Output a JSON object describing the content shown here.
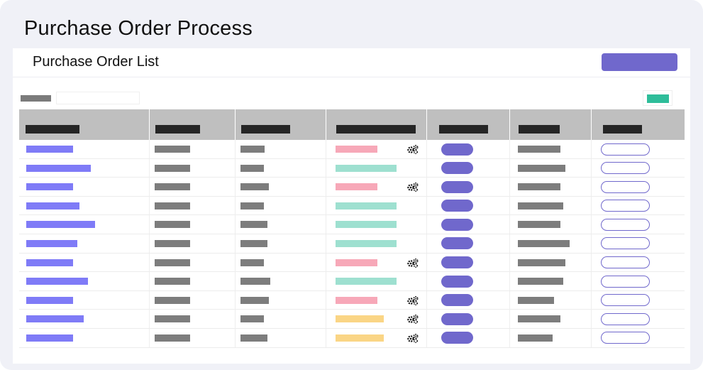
{
  "page": {
    "title": "Purchase Order Process"
  },
  "card": {
    "title": "Purchase Order List"
  },
  "colors": {
    "background": "#f0f1f7",
    "accent": "#7068cc",
    "link": "#7f7bf7",
    "placeholder": "#7d7d7d",
    "header_bg": "#bfbfbf",
    "header_text": "#262626",
    "teal": "#2ebd9a",
    "status_pink": "#f7a8b8",
    "status_mint": "#9ee0d0",
    "status_yellow": "#fad585"
  },
  "table": {
    "column_count": 7,
    "rows": [
      {
        "status_color": "pink",
        "gear": true
      },
      {
        "status_color": "mint",
        "gear": false
      },
      {
        "status_color": "pink",
        "gear": true
      },
      {
        "status_color": "mint",
        "gear": false
      },
      {
        "status_color": "mint",
        "gear": false
      },
      {
        "status_color": "mint",
        "gear": false
      },
      {
        "status_color": "pink",
        "gear": true
      },
      {
        "status_color": "mint",
        "gear": false
      },
      {
        "status_color": "pink",
        "gear": true
      },
      {
        "status_color": "yellow",
        "gear": true
      },
      {
        "status_color": "yellow",
        "gear": true
      }
    ]
  },
  "icons": {
    "row_action": "gears-icon"
  }
}
